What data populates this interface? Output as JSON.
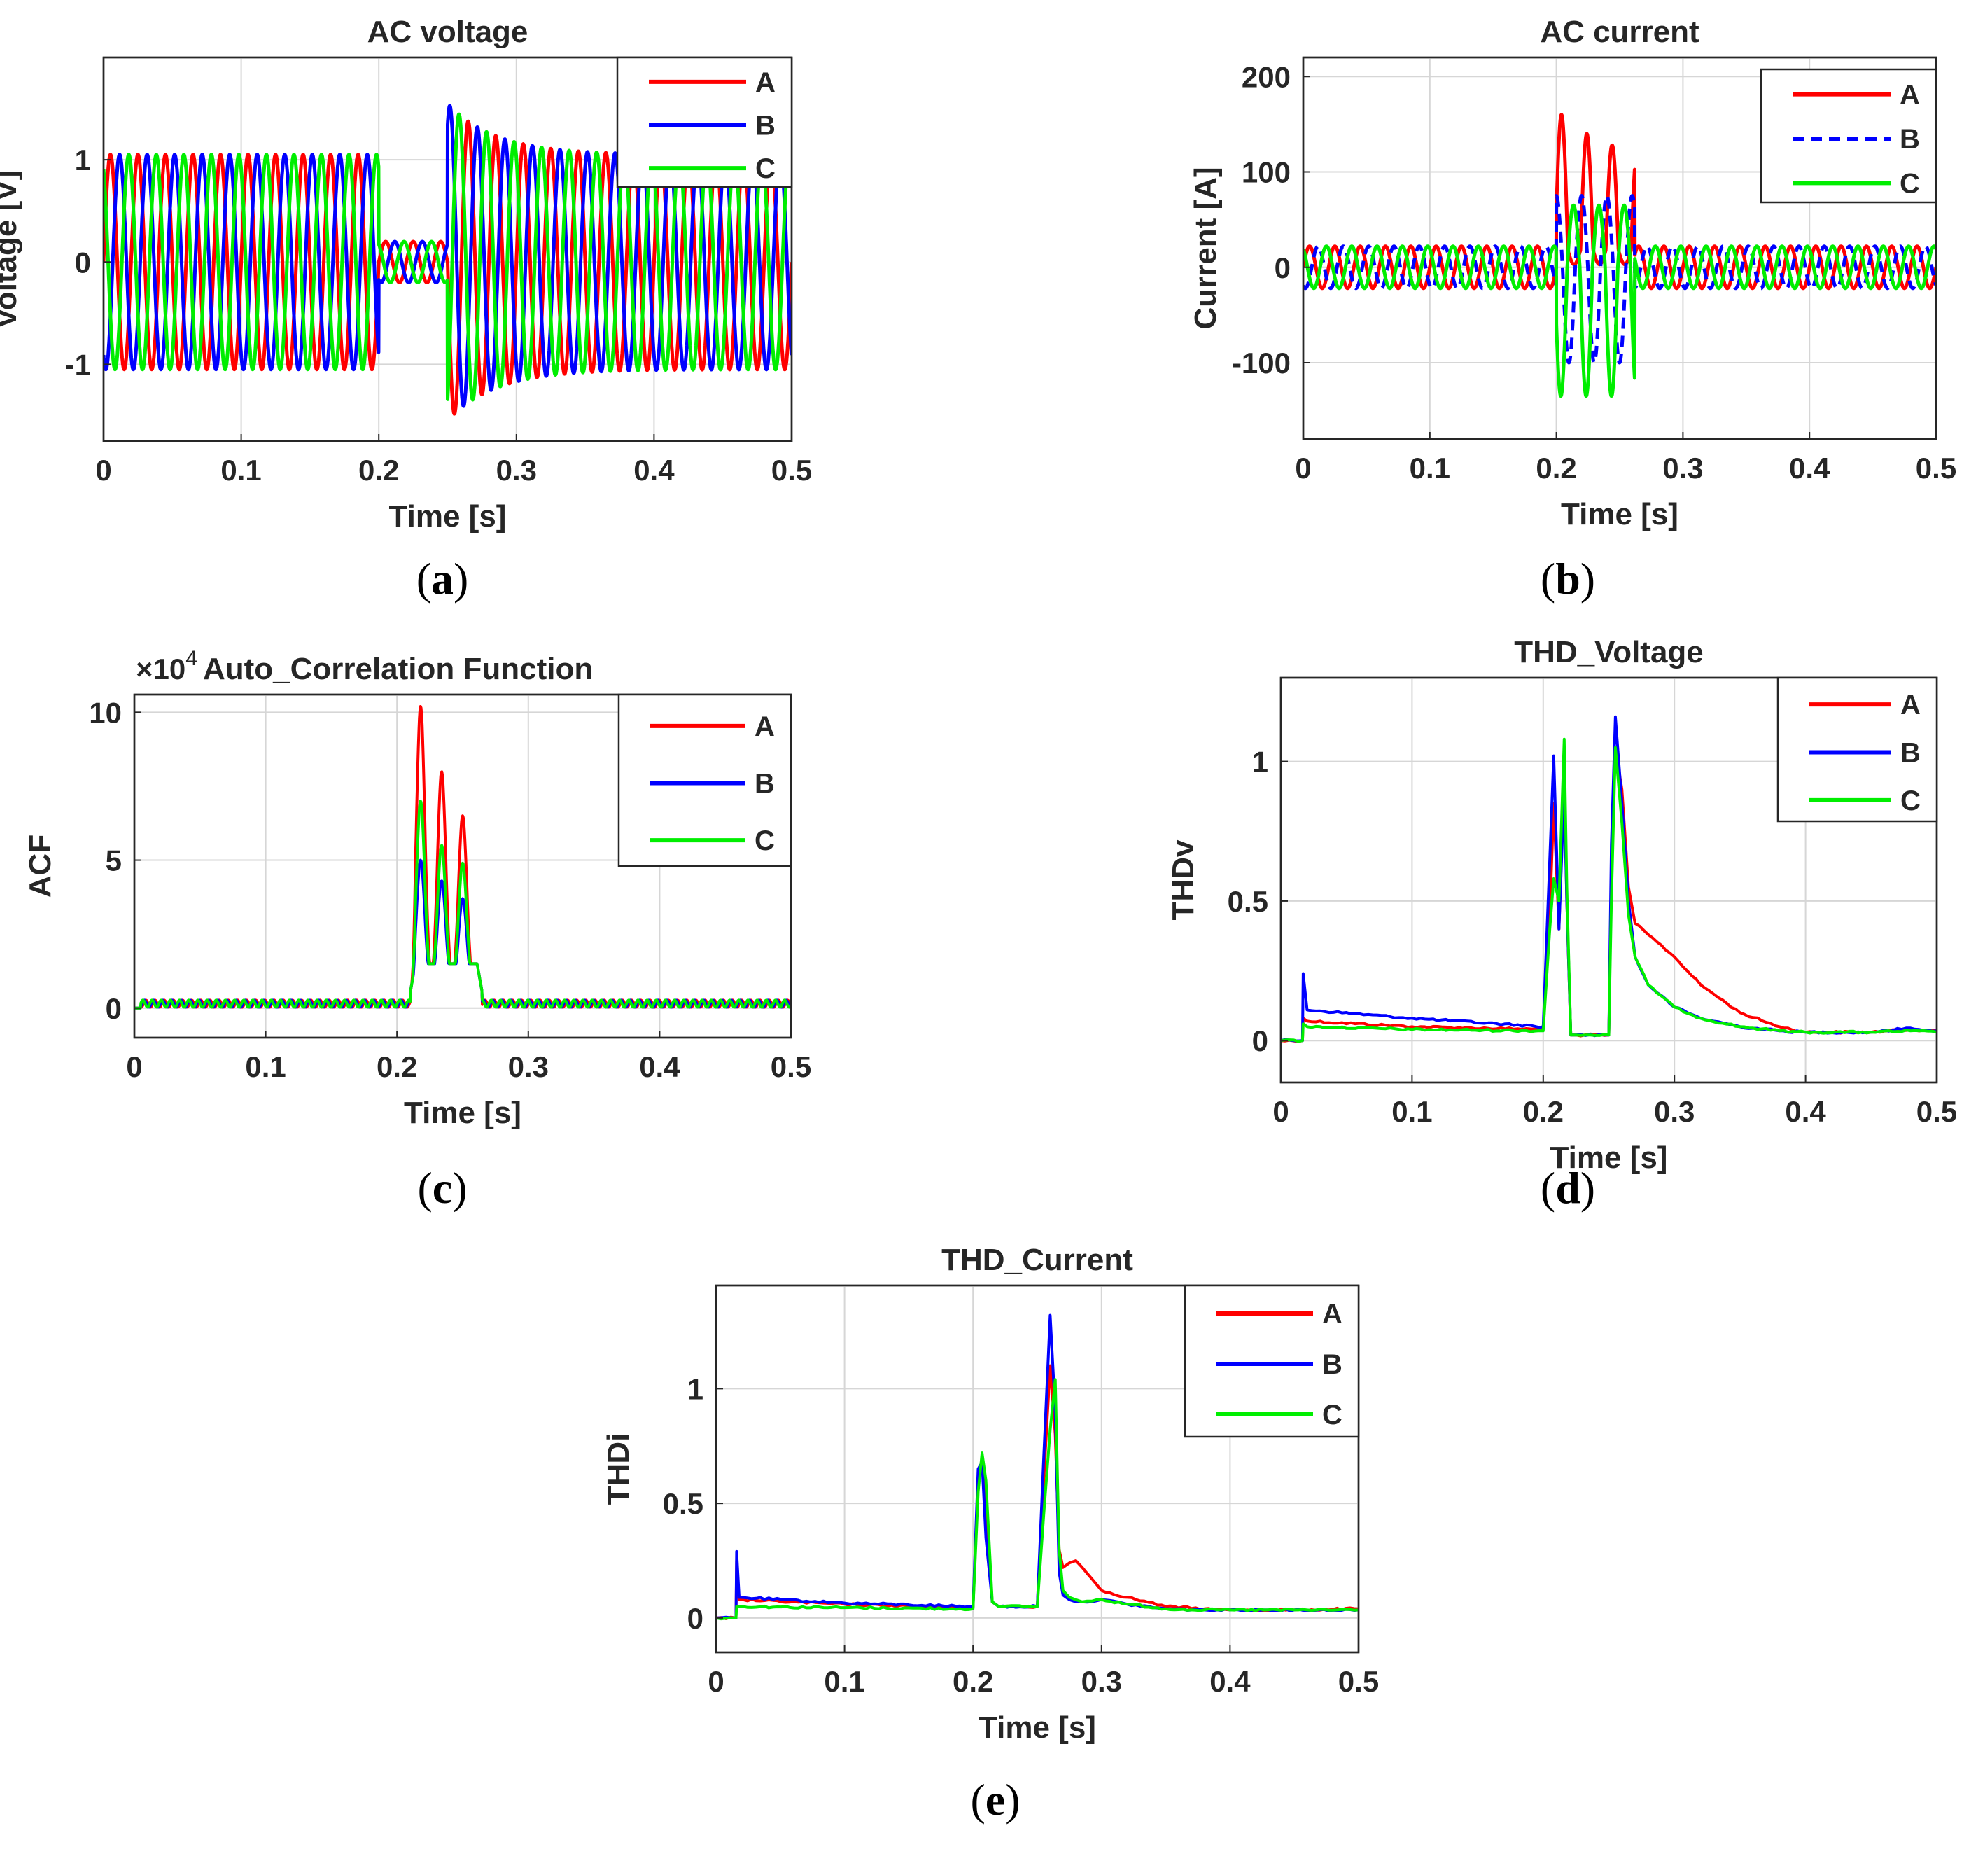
{
  "colors": {
    "A": "#ff0000",
    "B": "#0000ff",
    "C": "#00ee00"
  },
  "chart_data": [
    {
      "id": "a",
      "type": "line",
      "caption_letter": "a",
      "title": "AC voltage",
      "xlabel": "Time [s]",
      "ylabel": "Voltage [V]",
      "xlim": [
        0,
        0.5
      ],
      "ylim": [
        -1.75,
        2.0
      ],
      "xticks": [
        0,
        0.1,
        0.2,
        0.3,
        0.4,
        0.5
      ],
      "xtick_labels": [
        "0",
        "0.1",
        "0.2",
        "0.3",
        "0.4",
        "0.5"
      ],
      "yticks": [
        -1,
        0,
        1
      ],
      "ytick_labels": [
        "-1",
        "0",
        "1"
      ],
      "grid": true,
      "legend": [
        "A",
        "B",
        "C"
      ],
      "legend_dashed": [],
      "legend_position": "top-right",
      "signal": "ac_voltage",
      "description": "Three-phase 50 Hz sine waves, amplitude 1.05 V; sag to about 0.2 V between 0.2 s and 0.25 s; transient overshoot to about 1.55 V after 0.25 s, recovering to 1.05 V"
    },
    {
      "id": "b",
      "type": "line",
      "caption_letter": "b",
      "title": "AC current",
      "xlabel": "Time [s]",
      "ylabel": "Current [A]",
      "xlim": [
        0,
        0.5
      ],
      "ylim": [
        -180,
        220
      ],
      "xticks": [
        0,
        0.1,
        0.2,
        0.3,
        0.4,
        0.5
      ],
      "xtick_labels": [
        "0",
        "0.1",
        "0.2",
        "0.3",
        "0.4",
        "0.5"
      ],
      "yticks": [
        -100,
        0,
        100,
        200
      ],
      "ytick_labels": [
        "-100",
        "0",
        "100",
        "200"
      ],
      "grid": true,
      "legend": [
        "A",
        "B",
        "C"
      ],
      "legend_dashed": [
        "B"
      ],
      "legend_position": "top-right",
      "signal": "ac_current",
      "description": "Three-phase currents of about 22 A amplitude; fault current between 0.2 s and 0.26 s with phase A peaks of 160, 140 and 130 A and phase C troughs near -140 A"
    },
    {
      "id": "c",
      "type": "line",
      "caption_letter": "c",
      "title": "Auto_Correlation Function",
      "exponent_base": "×10",
      "exponent_power": "4",
      "xlabel": "Time [s]",
      "ylabel": "ACF",
      "xlim": [
        0,
        0.5
      ],
      "ylim": [
        -1.0,
        10.6
      ],
      "xticks": [
        0,
        0.1,
        0.2,
        0.3,
        0.4,
        0.5
      ],
      "xtick_labels": [
        "0",
        "0.1",
        "0.2",
        "0.3",
        "0.4",
        "0.5"
      ],
      "yticks": [
        0,
        5,
        10
      ],
      "ytick_labels": [
        "0",
        "5",
        "10"
      ],
      "grid": true,
      "legend": [
        "A",
        "B",
        "C"
      ],
      "legend_dashed": [],
      "legend_position": "top-right",
      "peaks": {
        "A": [
          [
            0.218,
            9.7
          ],
          [
            0.234,
            7.5
          ],
          [
            0.25,
            6.0
          ]
        ],
        "B": [
          [
            0.218,
            4.5
          ],
          [
            0.234,
            3.8
          ],
          [
            0.25,
            3.2
          ]
        ],
        "C": [
          [
            0.218,
            6.5
          ],
          [
            0.234,
            5.0
          ],
          [
            0.25,
            4.4
          ]
        ]
      }
    },
    {
      "id": "d",
      "type": "line",
      "caption_letter": "d",
      "title": "THD_Voltage",
      "xlabel": "Time [s]",
      "ylabel": "THDv",
      "xlim": [
        0,
        0.5
      ],
      "ylim": [
        -0.15,
        1.3
      ],
      "xticks": [
        0,
        0.1,
        0.2,
        0.3,
        0.4,
        0.5
      ],
      "xtick_labels": [
        "0",
        "0.1",
        "0.2",
        "0.3",
        "0.4",
        "0.5"
      ],
      "yticks": [
        0,
        0.5,
        1
      ],
      "ytick_labels": [
        "0",
        "0.5",
        "1"
      ],
      "grid": true,
      "legend": [
        "A",
        "B",
        "C"
      ],
      "legend_dashed": [],
      "legend_position": "top-right",
      "series": [
        {
          "name": "A",
          "x": [
            0,
            0.0165,
            0.017,
            0.02,
            0.1,
            0.2,
            0.205,
            0.208,
            0.212,
            0.216,
            0.218,
            0.221,
            0.225,
            0.25,
            0.252,
            0.255,
            0.26,
            0.265,
            0.27,
            0.28,
            0.3,
            0.32,
            0.35,
            0.38,
            0.4,
            0.45,
            0.48,
            0.5
          ],
          "y": [
            0,
            0,
            0.08,
            0.07,
            0.05,
            0.04,
            0.45,
            0.85,
            0.4,
            0.95,
            0.5,
            0.02,
            0.02,
            0.02,
            0.6,
            1.05,
            0.9,
            0.55,
            0.42,
            0.38,
            0.3,
            0.2,
            0.1,
            0.05,
            0.03,
            0.03,
            0.04,
            0.035
          ]
        },
        {
          "name": "B",
          "x": [
            0,
            0.0165,
            0.017,
            0.02,
            0.1,
            0.2,
            0.205,
            0.208,
            0.212,
            0.216,
            0.218,
            0.221,
            0.225,
            0.25,
            0.252,
            0.255,
            0.26,
            0.265,
            0.27,
            0.28,
            0.3,
            0.32,
            0.35,
            0.38,
            0.4,
            0.45,
            0.48,
            0.5
          ],
          "y": [
            0,
            0,
            0.24,
            0.11,
            0.08,
            0.05,
            0.65,
            1.02,
            0.4,
            0.9,
            0.5,
            0.02,
            0.02,
            0.02,
            0.7,
            1.16,
            0.85,
            0.5,
            0.3,
            0.2,
            0.12,
            0.08,
            0.05,
            0.035,
            0.03,
            0.03,
            0.045,
            0.035
          ]
        },
        {
          "name": "C",
          "x": [
            0,
            0.0165,
            0.017,
            0.02,
            0.1,
            0.2,
            0.205,
            0.208,
            0.212,
            0.216,
            0.218,
            0.221,
            0.225,
            0.25,
            0.252,
            0.255,
            0.26,
            0.265,
            0.27,
            0.28,
            0.3,
            0.32,
            0.35,
            0.38,
            0.4,
            0.45,
            0.48,
            0.5
          ],
          "y": [
            0,
            0,
            0.06,
            0.05,
            0.04,
            0.035,
            0.4,
            0.58,
            0.5,
            1.08,
            0.55,
            0.02,
            0.02,
            0.02,
            0.5,
            1.05,
            0.78,
            0.45,
            0.3,
            0.2,
            0.12,
            0.08,
            0.05,
            0.035,
            0.03,
            0.03,
            0.035,
            0.03
          ]
        }
      ]
    },
    {
      "id": "e",
      "type": "line",
      "caption_letter": "e",
      "title": "THD_Current",
      "xlabel": "Time [s]",
      "ylabel": "THDi",
      "xlim": [
        0,
        0.5
      ],
      "ylim": [
        -0.15,
        1.45
      ],
      "xticks": [
        0,
        0.1,
        0.2,
        0.3,
        0.4,
        0.5
      ],
      "xtick_labels": [
        "0",
        "0.1",
        "0.2",
        "0.3",
        "0.4",
        "0.5"
      ],
      "yticks": [
        0,
        0.5,
        1
      ],
      "ytick_labels": [
        "0",
        "0.5",
        "1"
      ],
      "grid": true,
      "legend": [
        "A",
        "B",
        "C"
      ],
      "legend_dashed": [],
      "legend_position": "top-right",
      "series": [
        {
          "name": "A",
          "x": [
            0,
            0.0155,
            0.016,
            0.018,
            0.1,
            0.2,
            0.204,
            0.207,
            0.21,
            0.215,
            0.22,
            0.25,
            0.255,
            0.26,
            0.264,
            0.267,
            0.27,
            0.275,
            0.28,
            0.285,
            0.3,
            0.32,
            0.35,
            0.38,
            0.4,
            0.45,
            0.5
          ],
          "y": [
            0,
            0,
            0.25,
            0.08,
            0.06,
            0.045,
            0.6,
            0.7,
            0.4,
            0.07,
            0.05,
            0.05,
            0.6,
            1.1,
            0.8,
            0.3,
            0.22,
            0.24,
            0.25,
            0.22,
            0.12,
            0.09,
            0.05,
            0.04,
            0.035,
            0.035,
            0.04
          ]
        },
        {
          "name": "B",
          "x": [
            0,
            0.0155,
            0.016,
            0.018,
            0.1,
            0.2,
            0.204,
            0.207,
            0.21,
            0.215,
            0.22,
            0.25,
            0.255,
            0.26,
            0.264,
            0.267,
            0.27,
            0.275,
            0.28,
            0.285,
            0.3,
            0.32,
            0.35,
            0.38,
            0.4,
            0.45,
            0.5
          ],
          "y": [
            0,
            0,
            0.29,
            0.09,
            0.065,
            0.05,
            0.65,
            0.68,
            0.35,
            0.07,
            0.05,
            0.05,
            0.7,
            1.32,
            0.9,
            0.2,
            0.1,
            0.08,
            0.07,
            0.07,
            0.08,
            0.06,
            0.04,
            0.035,
            0.035,
            0.035,
            0.035
          ]
        },
        {
          "name": "C",
          "x": [
            0,
            0.0155,
            0.016,
            0.018,
            0.1,
            0.2,
            0.204,
            0.207,
            0.21,
            0.215,
            0.22,
            0.25,
            0.255,
            0.26,
            0.264,
            0.267,
            0.27,
            0.275,
            0.28,
            0.285,
            0.3,
            0.32,
            0.35,
            0.38,
            0.4,
            0.45,
            0.5
          ],
          "y": [
            0,
            0,
            0.05,
            0.05,
            0.045,
            0.04,
            0.55,
            0.72,
            0.6,
            0.07,
            0.05,
            0.05,
            0.45,
            0.82,
            1.04,
            0.3,
            0.12,
            0.09,
            0.08,
            0.07,
            0.08,
            0.06,
            0.04,
            0.035,
            0.035,
            0.035,
            0.035
          ]
        }
      ]
    }
  ]
}
